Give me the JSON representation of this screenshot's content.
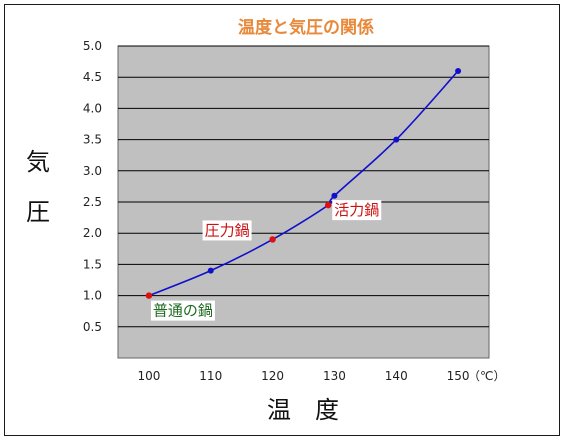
{
  "chart_data": {
    "type": "line",
    "title": "温度と気圧の関係",
    "xlabel": "温　度",
    "ylabel_chars": [
      "気",
      "圧"
    ],
    "x_unit": "（℃）",
    "xlim": [
      95,
      155
    ],
    "ylim": [
      0,
      5.0
    ],
    "x_ticks": [
      "100",
      "110",
      "120",
      "130",
      "140",
      "150"
    ],
    "y_ticks": [
      "0.5",
      "1.0",
      "1.5",
      "2.0",
      "2.5",
      "3.0",
      "3.5",
      "4.0",
      "4.5",
      "5.0"
    ],
    "grid": true,
    "plot_background": "#c0c0c0",
    "series": [
      {
        "color": "#1010cc",
        "points": [
          {
            "x": 100,
            "y": 1.0
          },
          {
            "x": 110,
            "y": 1.4
          },
          {
            "x": 120,
            "y": 1.9
          },
          {
            "x": 129,
            "y": 2.45
          },
          {
            "x": 130,
            "y": 2.6
          },
          {
            "x": 140,
            "y": 3.5
          },
          {
            "x": 150,
            "y": 4.6
          }
        ]
      }
    ],
    "highlights": [
      {
        "x": 100,
        "y": 1.0,
        "color": "#dd1111"
      },
      {
        "x": 120,
        "y": 1.9,
        "color": "#dd1111"
      },
      {
        "x": 129,
        "y": 2.45,
        "color": "#dd1111"
      }
    ],
    "annotations": [
      {
        "text": "普通の鍋",
        "x": 100,
        "y": 1.0,
        "color": "#1f6b1f",
        "anchor": "below-right"
      },
      {
        "text": "圧力鍋",
        "x": 120,
        "y": 1.9,
        "color": "#cc1111",
        "anchor": "above-left"
      },
      {
        "text": "活力鍋",
        "x": 129,
        "y": 2.45,
        "color": "#cc1111",
        "anchor": "right"
      }
    ]
  }
}
